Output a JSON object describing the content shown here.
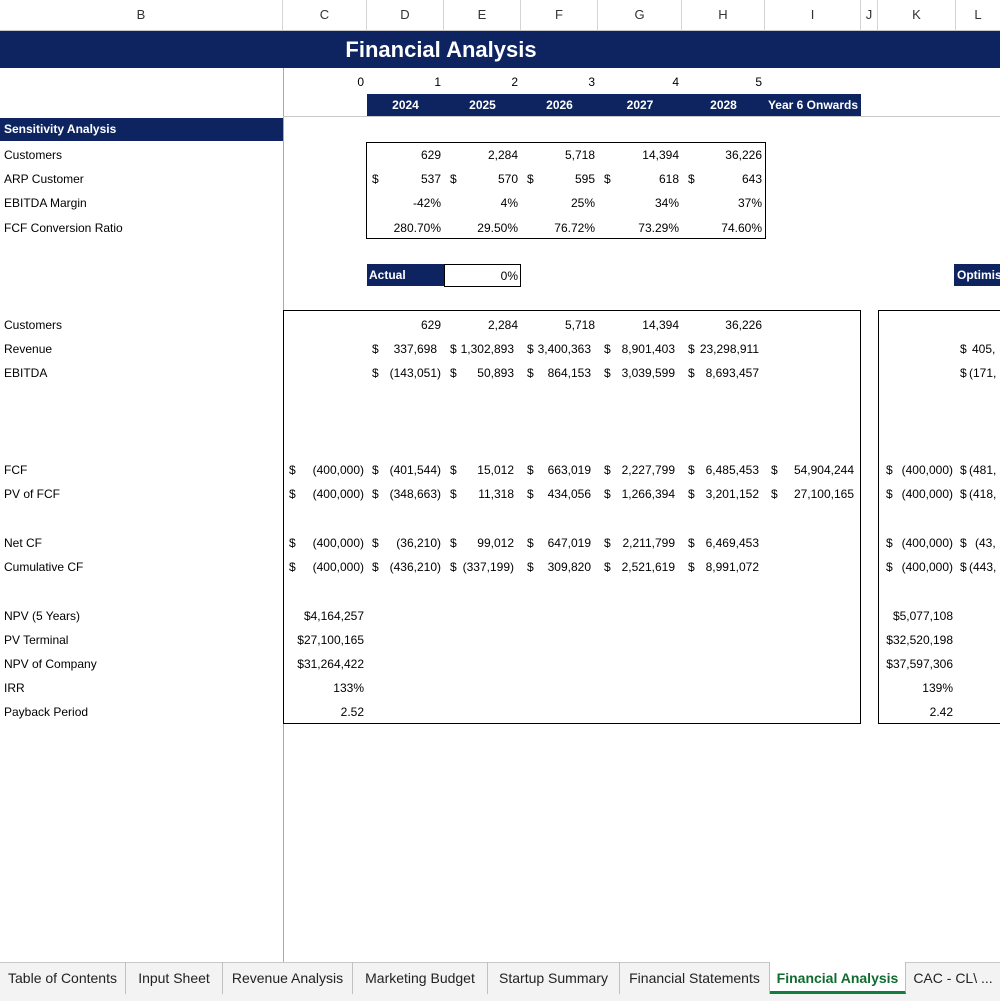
{
  "columns": [
    "B",
    "C",
    "D",
    "E",
    "F",
    "G",
    "H",
    "I",
    "J",
    "K",
    "L"
  ],
  "title": "Financial Analysis",
  "periods": [
    "0",
    "1",
    "2",
    "3",
    "4",
    "5"
  ],
  "years": [
    "2024",
    "2025",
    "2026",
    "2027",
    "2028",
    "Year 6 Onwards"
  ],
  "sensitivity": {
    "header": "Sensitivity Analysis",
    "rows": [
      {
        "label": "Customers",
        "values": [
          "629",
          "2,284",
          "5,718",
          "14,394",
          "36,226"
        ],
        "dollar": false
      },
      {
        "label": "ARP Customer",
        "values": [
          "537",
          "570",
          "595",
          "618",
          "643"
        ],
        "dollar": true
      },
      {
        "label": "EBITDA Margin",
        "values": [
          "-42%",
          "4%",
          "25%",
          "34%",
          "37%"
        ],
        "dollar": false
      },
      {
        "label": "FCF Conversion Ratio",
        "values": [
          "280.70%",
          "29.50%",
          "76.72%",
          "73.29%",
          "74.60%"
        ],
        "dollar": false
      }
    ]
  },
  "actual": {
    "label": "Actual",
    "value": "0%"
  },
  "optimistic_label": "Optimis",
  "dollar_sign": "$",
  "main": {
    "customers": {
      "label": "Customers",
      "values": [
        "629",
        "2,284",
        "5,718",
        "14,394",
        "36,226"
      ]
    },
    "revenue": {
      "label": "Revenue",
      "values": [
        "337,698",
        "1,302,893",
        "3,400,363",
        "8,901,403",
        "23,298,911"
      ]
    },
    "ebitda": {
      "label": "EBITDA",
      "values": [
        "(143,051)",
        "50,893",
        "864,153",
        "3,039,599",
        "8,693,457"
      ]
    },
    "fcf": {
      "label": "FCF",
      "values": [
        "(400,000)",
        "(401,544)",
        "15,012",
        "663,019",
        "2,227,799",
        "6,485,453",
        "54,904,244"
      ]
    },
    "pvfcf": {
      "label": "PV of FCF",
      "values": [
        "(400,000)",
        "(348,663)",
        "11,318",
        "434,056",
        "1,266,394",
        "3,201,152",
        "27,100,165"
      ]
    },
    "netcf": {
      "label": "Net CF",
      "values": [
        "(400,000)",
        "(36,210)",
        "99,012",
        "647,019",
        "2,211,799",
        "6,469,453"
      ]
    },
    "cumcf": {
      "label": "Cumulative CF",
      "values": [
        "(400,000)",
        "(436,210)",
        "(337,199)",
        "309,820",
        "2,521,619",
        "8,991,072"
      ]
    },
    "npv5": {
      "label": "NPV (5 Years)",
      "value": "$4,164,257"
    },
    "pvterm": {
      "label": "PV Terminal",
      "value": "$27,100,165"
    },
    "npvco": {
      "label": "NPV of Company",
      "value": "$31,264,422"
    },
    "irr": {
      "label": "IRR",
      "value": "133%"
    },
    "payback": {
      "label": "Payback Period",
      "value": "2.52"
    }
  },
  "optimistic": {
    "revenue": "405,",
    "ebitda": "(171,",
    "fcf": [
      "(400,000)",
      "(481,"
    ],
    "pvfcf": [
      "(400,000)",
      "(418,"
    ],
    "netcf": [
      "(400,000)",
      "(43,"
    ],
    "cumcf": [
      "(400,000)",
      "(443,"
    ],
    "npv5": "$5,077,108",
    "pvterm": "$32,520,198",
    "npvco": "$37,597,306",
    "irr": "139%",
    "payback": "2.42"
  },
  "tabs": [
    "Table of Contents",
    "Input Sheet",
    "Revenue Analysis",
    "Marketing Budget",
    "Startup Summary",
    "Financial Statements",
    "Financial Analysis",
    "CAC - CL\\ ..."
  ]
}
